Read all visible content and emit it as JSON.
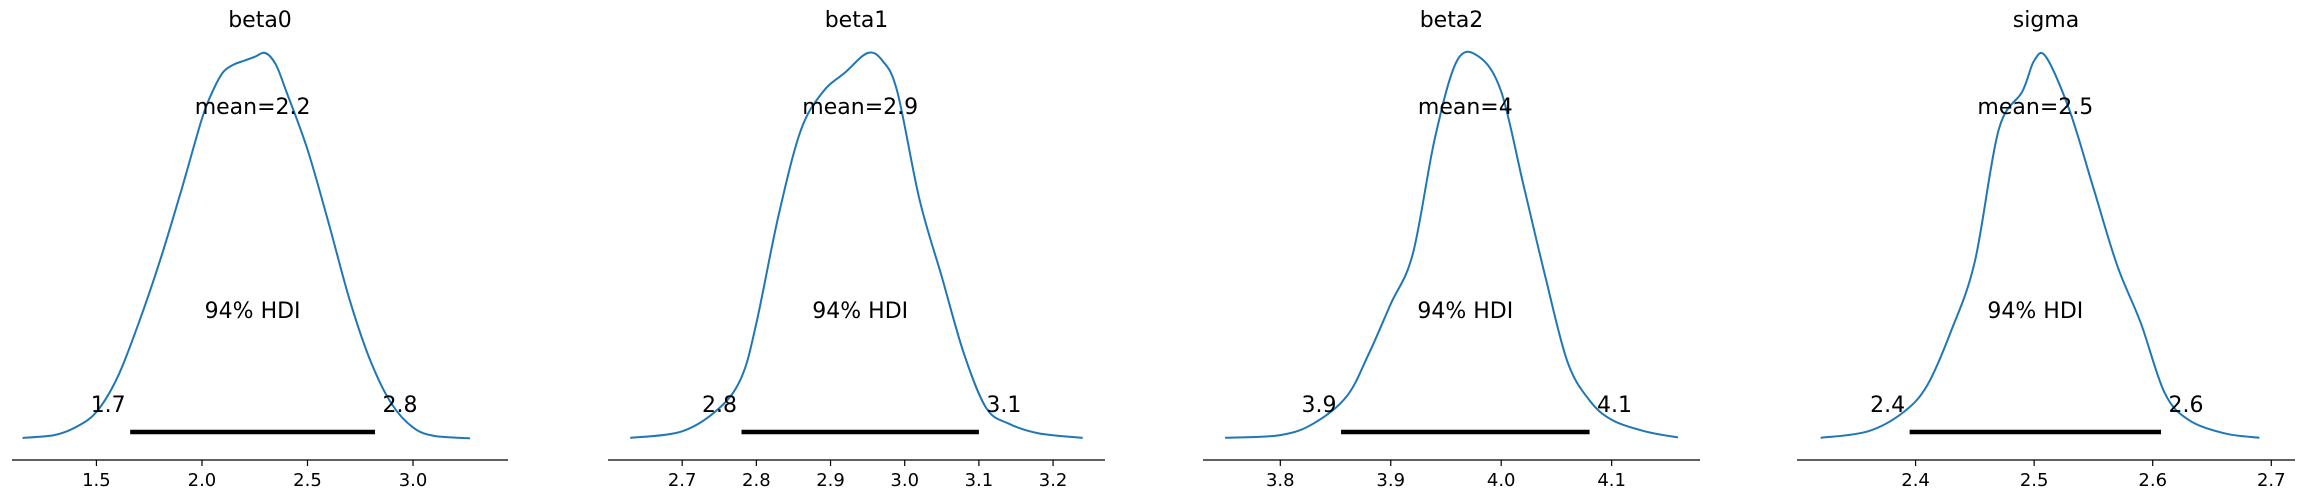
{
  "colors": {
    "density": "#1f77b4",
    "hdi": "#000000",
    "axis": "#000000"
  },
  "chart_data": [
    {
      "type": "area",
      "title": "beta0",
      "mean_label": "mean=2.2",
      "hdi_label": "94% HDI",
      "hdi": [
        1.66,
        2.82
      ],
      "hdi_low_label": "1.7",
      "hdi_high_label": "2.8",
      "xlim": [
        1.1,
        3.45
      ],
      "ticks": [
        1.5,
        2.0,
        2.5,
        3.0
      ],
      "tick_labels": [
        "1.5",
        "2.0",
        "2.5",
        "3.0"
      ],
      "density": {
        "x": [
          1.15,
          1.3,
          1.4,
          1.5,
          1.6,
          1.7,
          1.8,
          1.9,
          2.0,
          2.05,
          2.1,
          2.15,
          2.2,
          2.25,
          2.3,
          2.35,
          2.4,
          2.5,
          2.6,
          2.7,
          2.8,
          2.9,
          3.0,
          3.1,
          3.27
        ],
        "y": [
          0.003,
          0.01,
          0.03,
          0.07,
          0.16,
          0.3,
          0.46,
          0.64,
          0.83,
          0.9,
          0.95,
          0.97,
          0.98,
          0.99,
          1.0,
          0.97,
          0.9,
          0.75,
          0.56,
          0.36,
          0.2,
          0.09,
          0.03,
          0.008,
          0.002
        ]
      }
    },
    {
      "type": "area",
      "title": "beta1",
      "mean_label": "mean=2.9",
      "hdi_label": "94% HDI",
      "hdi": [
        2.78,
        3.1
      ],
      "hdi_low_label": "2.8",
      "hdi_high_label": "3.1",
      "xlim": [
        2.6,
        3.27
      ],
      "ticks": [
        2.7,
        2.8,
        2.9,
        3.0,
        3.1,
        3.2
      ],
      "tick_labels": [
        "2.7",
        "2.8",
        "2.9",
        "3.0",
        "3.1",
        "3.2"
      ],
      "density": {
        "x": [
          2.63,
          2.7,
          2.75,
          2.78,
          2.8,
          2.83,
          2.86,
          2.89,
          2.92,
          2.95,
          2.97,
          2.99,
          3.02,
          3.05,
          3.08,
          3.11,
          3.14,
          3.18,
          3.24
        ],
        "y": [
          0.003,
          0.02,
          0.08,
          0.16,
          0.3,
          0.58,
          0.8,
          0.9,
          0.95,
          1.0,
          0.98,
          0.9,
          0.62,
          0.42,
          0.22,
          0.08,
          0.04,
          0.015,
          0.003
        ]
      }
    },
    {
      "type": "area",
      "title": "beta2",
      "mean_label": "mean=4",
      "hdi_label": "94% HDI",
      "hdi": [
        3.855,
        4.08
      ],
      "hdi_low_label": "3.9",
      "hdi_high_label": "4.1",
      "xlim": [
        3.73,
        4.18
      ],
      "ticks": [
        3.8,
        3.9,
        4.0,
        4.1
      ],
      "tick_labels": [
        "3.8",
        "3.9",
        "4.0",
        "4.1"
      ],
      "density": {
        "x": [
          3.75,
          3.8,
          3.83,
          3.86,
          3.88,
          3.9,
          3.92,
          3.94,
          3.96,
          3.98,
          4.0,
          4.02,
          4.04,
          4.06,
          4.08,
          4.1,
          4.13,
          4.16
        ],
        "y": [
          0.003,
          0.01,
          0.04,
          0.11,
          0.22,
          0.35,
          0.48,
          0.78,
          0.98,
          0.99,
          0.9,
          0.66,
          0.42,
          0.2,
          0.1,
          0.05,
          0.02,
          0.004
        ]
      }
    },
    {
      "type": "area",
      "title": "sigma",
      "mean_label": "mean=2.5",
      "hdi_label": "94% HDI",
      "hdi": [
        2.395,
        2.607
      ],
      "hdi_low_label": "2.4",
      "hdi_high_label": "2.6",
      "xlim": [
        2.3,
        2.72
      ],
      "ticks": [
        2.4,
        2.5,
        2.6,
        2.7
      ],
      "tick_labels": [
        "2.4",
        "2.5",
        "2.6",
        "2.7"
      ],
      "density": {
        "x": [
          2.32,
          2.36,
          2.39,
          2.41,
          2.43,
          2.45,
          2.47,
          2.49,
          2.5,
          2.51,
          2.53,
          2.55,
          2.57,
          2.59,
          2.61,
          2.63,
          2.66,
          2.69
        ],
        "y": [
          0.003,
          0.02,
          0.07,
          0.14,
          0.28,
          0.46,
          0.8,
          0.9,
          0.98,
          0.99,
          0.85,
          0.65,
          0.45,
          0.3,
          0.12,
          0.05,
          0.015,
          0.003
        ]
      }
    }
  ]
}
